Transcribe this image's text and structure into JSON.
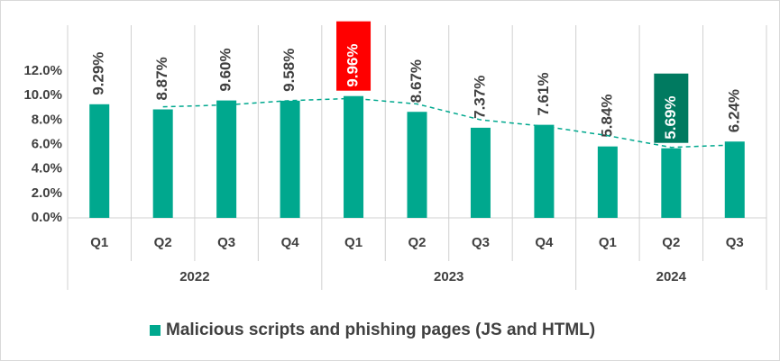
{
  "chart_data": {
    "type": "bar",
    "groups": [
      {
        "name": "2022",
        "categories": [
          "Q1",
          "Q2",
          "Q3",
          "Q4"
        ]
      },
      {
        "name": "2023",
        "categories": [
          "Q1",
          "Q2",
          "Q3",
          "Q4"
        ]
      },
      {
        "name": "2024",
        "categories": [
          "Q1",
          "Q2",
          "Q3"
        ]
      }
    ],
    "series": [
      {
        "name": "Malicious scripts and phishing pages (JS and HTML)",
        "color": "#00a88e",
        "values": [
          9.29,
          8.87,
          9.6,
          9.58,
          9.96,
          8.67,
          7.37,
          7.61,
          5.84,
          5.69,
          6.24
        ],
        "value_labels": [
          "9.29%",
          "8.87%",
          "9.60%",
          "9.58%",
          "9.96%",
          "8.67%",
          "7.37%",
          "7.61%",
          "5.84%",
          "5.69%",
          "6.24%"
        ]
      }
    ],
    "highlights": [
      {
        "index": 4,
        "color": "#ff0000"
      },
      {
        "index": 9,
        "color": "#007a60"
      }
    ],
    "trendline": {
      "type": "moving_average",
      "period": 2,
      "color": "#00a88e"
    },
    "ylim": [
      0,
      12
    ],
    "yticks": [
      {
        "value": 0,
        "label": "0.0%"
      },
      {
        "value": 2,
        "label": "2.0%"
      },
      {
        "value": 4,
        "label": "4.0%"
      },
      {
        "value": 6,
        "label": "6.0%"
      },
      {
        "value": 8,
        "label": "8.0%"
      },
      {
        "value": 10,
        "label": "10.0%"
      },
      {
        "value": 12,
        "label": "12.0%"
      }
    ],
    "grid": false,
    "legend": "bottom"
  }
}
